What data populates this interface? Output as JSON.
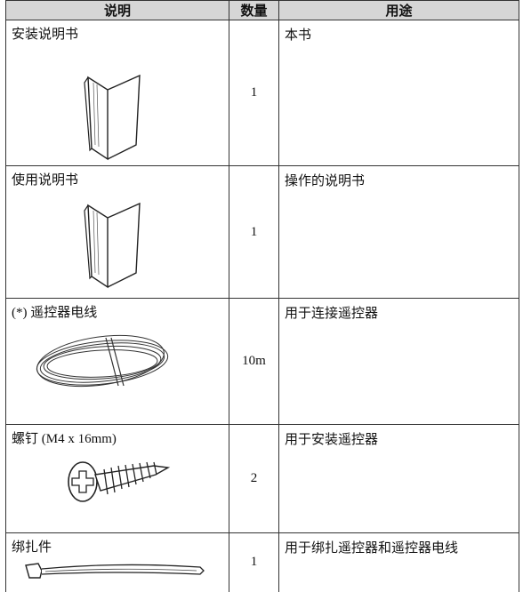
{
  "table": {
    "headers": [
      "说明",
      "数量",
      "用途"
    ],
    "rows": [
      [
        "安装说明书",
        "1",
        "本书"
      ],
      [
        "使用说明书",
        "1",
        "操作的说明书"
      ],
      [
        "(*) 遥控器电线",
        "10m",
        "用于连接遥控器"
      ],
      [
        "螺钉 (M4 x 16mm)",
        "2",
        "用于安装遥控器"
      ],
      [
        "绑扎件",
        "1",
        "用于绑扎遥控器和遥控器电线"
      ]
    ]
  }
}
